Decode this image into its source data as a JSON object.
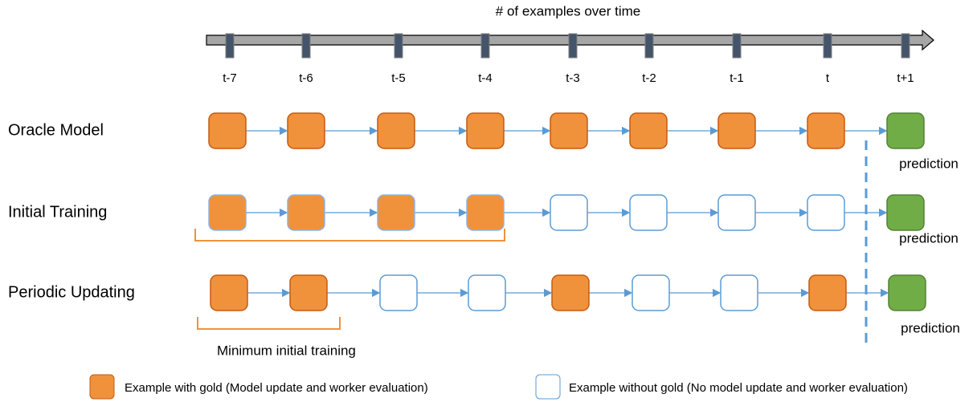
{
  "header": {
    "title": "# of examples over time"
  },
  "time_labels": [
    "t-7",
    "t-6",
    "t-5",
    "t-4",
    "t-3",
    "t-2",
    "t-1",
    "t",
    "t+1"
  ],
  "rows": [
    {
      "label": "Oracle Model",
      "prediction": "prediction"
    },
    {
      "label": "Initial Training",
      "prediction": "prediction"
    },
    {
      "label": "Periodic Updating",
      "prediction": "prediction"
    }
  ],
  "annotation": "Minimum initial training",
  "legend": {
    "gold": "Example with gold (Model update and worker evaluation)",
    "no_gold": "Example without gold (No model update and worker evaluation)"
  }
}
